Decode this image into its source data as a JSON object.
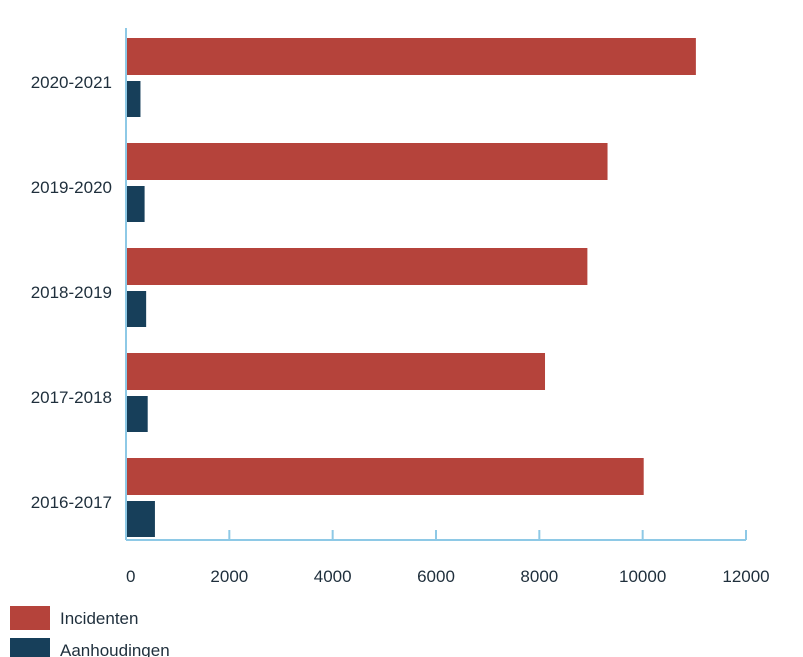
{
  "chart_data": {
    "type": "bar",
    "orientation": "horizontal",
    "categories": [
      "2020-2021",
      "2019-2020",
      "2018-2019",
      "2017-2018",
      "2016-2017"
    ],
    "series": [
      {
        "name": "Incidenten",
        "color": "#b5433b",
        "values": [
          11030,
          9320,
          8930,
          8110,
          10020
        ]
      },
      {
        "name": "Aanhoudingen",
        "color": "#173f5a",
        "values": [
          280,
          360,
          390,
          420,
          560
        ]
      }
    ],
    "xticks": [
      "0",
      "2000",
      "4000",
      "6000",
      "8000",
      "10000",
      "12000"
    ],
    "xlim": [
      0,
      12000
    ],
    "axis_color": "#8ec9e6",
    "grid": false,
    "legend_position": "bottom-left"
  }
}
